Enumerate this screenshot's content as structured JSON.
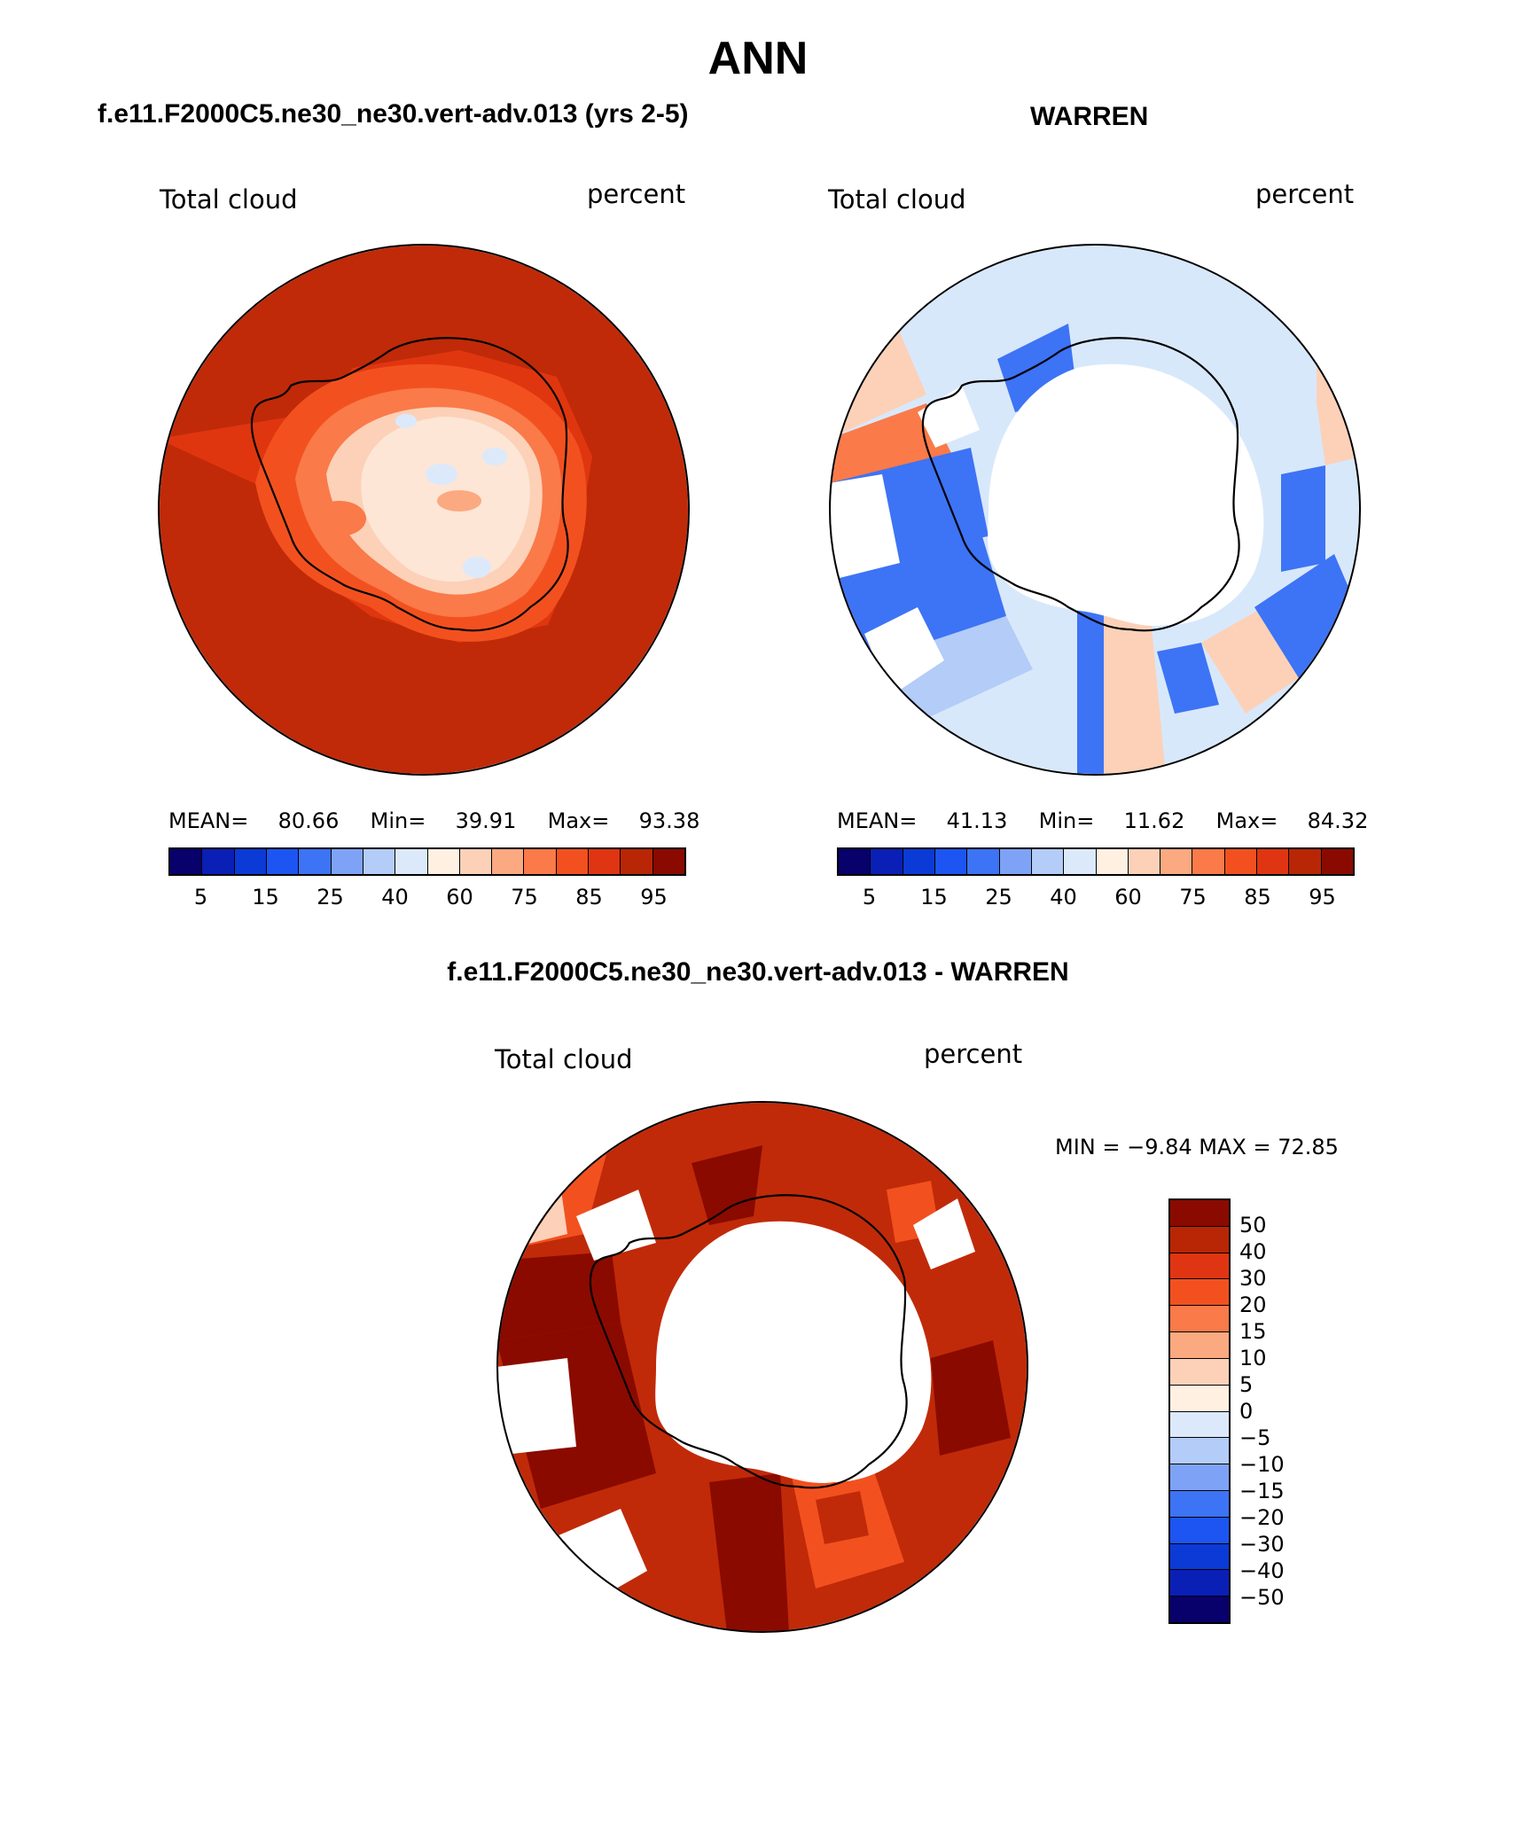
{
  "page": {
    "title": "ANN"
  },
  "panels": [
    {
      "id": "model",
      "case_title": "f.e11.F2000C5.ne30_ne30.vert-adv.013 (yrs 2-5)",
      "variable": "Total cloud",
      "units": "percent",
      "stats": {
        "mean_label": "MEAN=",
        "mean": "80.66",
        "min_label": "Min=",
        "min": "39.91",
        "max_label": "Max=",
        "max": "93.38"
      }
    },
    {
      "id": "obs",
      "case_title": "WARREN",
      "variable": "Total cloud",
      "units": "percent",
      "stats": {
        "mean_label": "MEAN=",
        "mean": "41.13",
        "min_label": "Min=",
        "min": "11.62",
        "max_label": "Max=",
        "max": "84.32"
      }
    },
    {
      "id": "diff",
      "case_title": "f.e11.F2000C5.ne30_ne30.vert-adv.013 - WARREN",
      "variable": "Total cloud",
      "units": "percent",
      "minmax": "MIN =   −9.84  MAX =    72.85"
    }
  ],
  "colorbar_abs": {
    "colors": [
      "#08006b",
      "#0a1fb5",
      "#0b3ad6",
      "#1c55f2",
      "#3d73f5",
      "#7ea3f6",
      "#b3ccf8",
      "#dce9fb",
      "#fff0e2",
      "#fcd1b8",
      "#fba980",
      "#fa7a49",
      "#f2511f",
      "#e03512",
      "#b82605",
      "#8a0a00"
    ],
    "tick_labels": [
      "5",
      "15",
      "25",
      "40",
      "60",
      "75",
      "85",
      "95"
    ]
  },
  "colorbar_diff": {
    "colors_top_to_bottom": [
      "#8a0a00",
      "#b82605",
      "#e03512",
      "#f2511f",
      "#fa7a49",
      "#fba980",
      "#fcd1b8",
      "#fff0e2",
      "#dce9fb",
      "#b3ccf8",
      "#7ea3f6",
      "#3d73f5",
      "#1c55f2",
      "#0b3ad6",
      "#0a1fb5",
      "#08006b"
    ],
    "tick_labels": [
      "50",
      "40",
      "30",
      "20",
      "15",
      "10",
      "5",
      "0",
      "−5",
      "−10",
      "−15",
      "−20",
      "−30",
      "−40",
      "−50"
    ]
  },
  "colors": {
    "ocean_model": "#c02a09",
    "coast_model": "#f2511f",
    "land_model": "#fde6d6",
    "ocean_obs": "#d8e8fb",
    "land_obs": "#ffffff",
    "ocean_diff": "#c02a09",
    "land_diff": "#ffffff"
  }
}
